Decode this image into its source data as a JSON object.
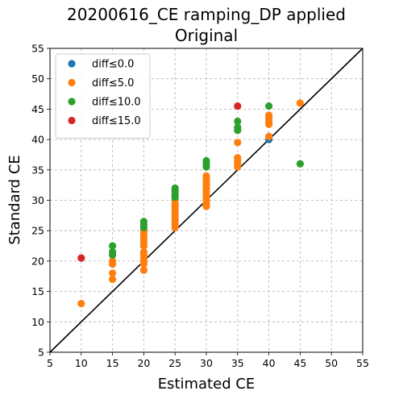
{
  "chart_data": {
    "type": "scatter",
    "title": "20200616_CE ramping_DP applied",
    "subtitle": "Original",
    "xlabel": "Estimated CE",
    "ylabel": "Standard CE",
    "xlim": [
      5,
      55
    ],
    "ylim": [
      5,
      55
    ],
    "xticks": [
      "5",
      "10",
      "15",
      "20",
      "25",
      "30",
      "35",
      "40",
      "45",
      "50",
      "55"
    ],
    "yticks": [
      "5",
      "10",
      "15",
      "20",
      "25",
      "30",
      "35",
      "40",
      "45",
      "50",
      "55"
    ],
    "grid": true,
    "legend_position": "top-left",
    "reference_line": {
      "type": "identity",
      "color": "#000000"
    },
    "series": [
      {
        "name": "diff≤0.0",
        "color": "#1f77b4",
        "points": [
          [
            40,
            40
          ]
        ]
      },
      {
        "name": "diff≤5.0",
        "color": "#ff7f0e",
        "points": [
          [
            10,
            13
          ],
          [
            15,
            17
          ],
          [
            15,
            18
          ],
          [
            15,
            19.5
          ],
          [
            15,
            20
          ],
          [
            20,
            18.5
          ],
          [
            20,
            19.5
          ],
          [
            20,
            20
          ],
          [
            20,
            20.5
          ],
          [
            20,
            21
          ],
          [
            20,
            21.5
          ],
          [
            20,
            22.5
          ],
          [
            20,
            23
          ],
          [
            20,
            23.5
          ],
          [
            20,
            24
          ],
          [
            20,
            24.5
          ],
          [
            20,
            25
          ],
          [
            25,
            25.5
          ],
          [
            25,
            26
          ],
          [
            25,
            26.5
          ],
          [
            25,
            27
          ],
          [
            25,
            27.5
          ],
          [
            25,
            28
          ],
          [
            25,
            28.5
          ],
          [
            25,
            29
          ],
          [
            25,
            29.5
          ],
          [
            25,
            30
          ],
          [
            30,
            29
          ],
          [
            30,
            29.5
          ],
          [
            30,
            30
          ],
          [
            30,
            30.5
          ],
          [
            30,
            31
          ],
          [
            30,
            31.5
          ],
          [
            30,
            32
          ],
          [
            30,
            32.5
          ],
          [
            30,
            33
          ],
          [
            30,
            33.5
          ],
          [
            30,
            34
          ],
          [
            35,
            35.5
          ],
          [
            35,
            36
          ],
          [
            35,
            36.5
          ],
          [
            35,
            37
          ],
          [
            35,
            39.5
          ],
          [
            40,
            40.5
          ],
          [
            40,
            42.5
          ],
          [
            40,
            43
          ],
          [
            40,
            43.5
          ],
          [
            40,
            44
          ],
          [
            45,
            46
          ]
        ]
      },
      {
        "name": "diff≤10.0",
        "color": "#2ca02c",
        "points": [
          [
            15,
            21
          ],
          [
            15,
            21.5
          ],
          [
            15,
            22.5
          ],
          [
            20,
            25.5
          ],
          [
            20,
            26
          ],
          [
            20,
            26.5
          ],
          [
            25,
            30.5
          ],
          [
            25,
            31
          ],
          [
            25,
            31.5
          ],
          [
            25,
            32
          ],
          [
            30,
            35.5
          ],
          [
            30,
            36
          ],
          [
            30,
            36.5
          ],
          [
            35,
            41.5
          ],
          [
            35,
            42
          ],
          [
            35,
            43
          ],
          [
            40,
            45.5
          ],
          [
            45,
            36
          ]
        ]
      },
      {
        "name": "diff≤15.0",
        "color": "#d62728",
        "points": [
          [
            10,
            20.5
          ],
          [
            35,
            45.5
          ]
        ]
      }
    ]
  }
}
